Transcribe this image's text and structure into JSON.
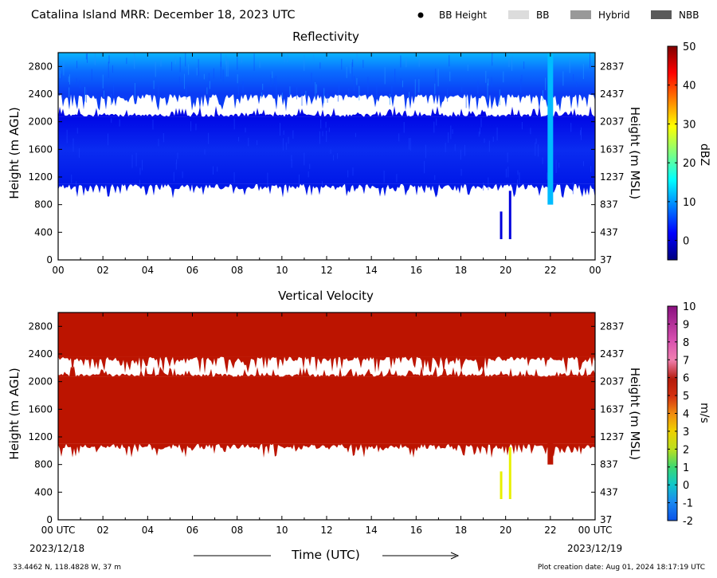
{
  "header": {
    "title": "Catalina Island MRR:  December 18, 2023 UTC",
    "legend": [
      {
        "label": "BB Height",
        "icon": "dot",
        "color": "#000000"
      },
      {
        "label": "BB",
        "icon": "swatch",
        "color": "#dcdcdc"
      },
      {
        "label": "Hybrid",
        "icon": "swatch",
        "color": "#999999"
      },
      {
        "label": "NBB",
        "icon": "swatch",
        "color": "#5a5a5a"
      }
    ]
  },
  "footer": {
    "coords": "33.4462 N, 118.4828 W, 37 m",
    "created": "Plot creation date: Aug 01, 2024 18:17:19 UTC",
    "xlabel": "Time (UTC)",
    "start_date": "2023/12/18",
    "end_date": "2023/12/19"
  },
  "chart_data": [
    {
      "type": "heatmap",
      "title": "Reflectivity",
      "ylabel": "Height (m AGL)",
      "y2label": "Height (m MSL)",
      "xticks": [
        "00",
        "02",
        "04",
        "06",
        "08",
        "10",
        "12",
        "14",
        "16",
        "18",
        "20",
        "22",
        "00"
      ],
      "xlim": [
        0,
        24
      ],
      "yticks": [
        0,
        400,
        800,
        1200,
        1600,
        2000,
        2400,
        2800
      ],
      "y2ticks": [
        37,
        437,
        837,
        1237,
        1637,
        2037,
        2437,
        2837
      ],
      "ylim": [
        0,
        3000
      ],
      "colorbar": {
        "label": "dBZ",
        "ticks": [
          0,
          10,
          20,
          30,
          40,
          50
        ],
        "range": [
          -5,
          50
        ],
        "colormap": "jet"
      },
      "bands": [
        {
          "name": "upper layer",
          "y": [
            2400,
            3000
          ],
          "value_dbz": 5
        },
        {
          "name": "gap",
          "y": [
            2070,
            2400
          ],
          "value": null
        },
        {
          "name": "main layer",
          "y": [
            1100,
            2070
          ],
          "value_dbz": 1
        }
      ],
      "features": [
        {
          "x": 19.8,
          "y": [
            300,
            700
          ],
          "value_dbz": 0
        },
        {
          "x": 20.2,
          "y": [
            300,
            1000
          ],
          "value_dbz": 0
        },
        {
          "x": 22.0,
          "y": [
            800,
            3000
          ],
          "value_dbz": 12
        }
      ]
    },
    {
      "type": "heatmap",
      "title": "Vertical Velocity",
      "ylabel": "Height (m AGL)",
      "y2label": "Height (m MSL)",
      "xticks": [
        "00 UTC",
        "02",
        "04",
        "06",
        "08",
        "10",
        "12",
        "14",
        "16",
        "18",
        "20",
        "22",
        "00 UTC"
      ],
      "xlim": [
        0,
        24
      ],
      "yticks": [
        0,
        400,
        800,
        1200,
        1600,
        2000,
        2400,
        2800
      ],
      "y2ticks": [
        37,
        437,
        837,
        1237,
        1637,
        2037,
        2437,
        2837
      ],
      "ylim": [
        0,
        3000
      ],
      "colorbar": {
        "label": "m/s",
        "ticks": [
          -2,
          -1,
          0,
          1,
          2,
          3,
          4,
          5,
          6,
          7,
          8,
          9,
          10
        ],
        "range": [
          -2,
          10
        ]
      },
      "bands": [
        {
          "name": "upper layer",
          "y": [
            2360,
            3000
          ],
          "value_ms": 5.7
        },
        {
          "name": "gap",
          "y": [
            2070,
            2360
          ],
          "value": null
        },
        {
          "name": "main layer",
          "y": [
            1100,
            2070
          ],
          "value_ms": 5.7
        }
      ],
      "features": [
        {
          "x": 19.8,
          "y": [
            300,
            700
          ],
          "value_ms": 2.5
        },
        {
          "x": 20.2,
          "y": [
            300,
            1050
          ],
          "value_ms": 2.5
        },
        {
          "x": 22.0,
          "y": [
            800,
            1200
          ],
          "value_ms": 5.7
        }
      ]
    }
  ]
}
